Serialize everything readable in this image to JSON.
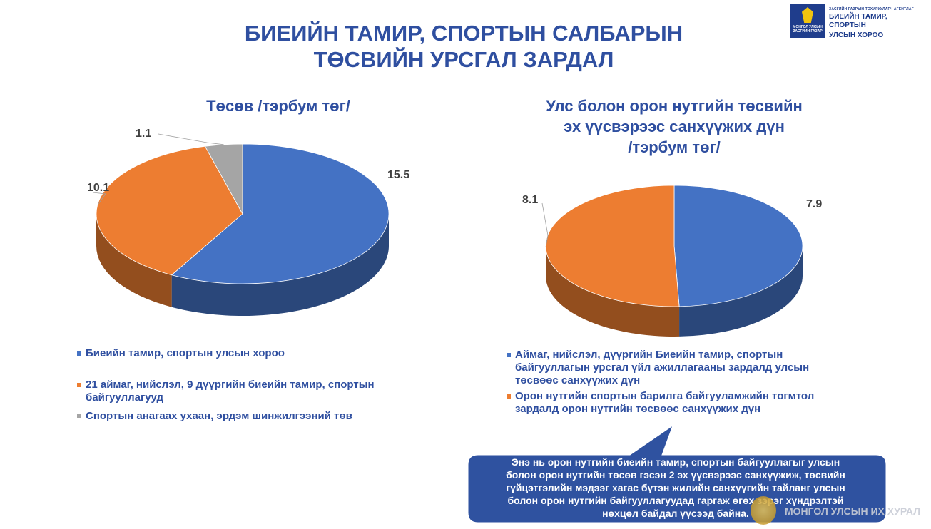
{
  "slide": {
    "title_line1": "БИЕИЙН ТАМИР, СПОРТЫН САЛБАРЫН",
    "title_line2": "ТӨСВИЙН УРСГАЛ ЗАРДАЛ"
  },
  "logo": {
    "box_text": "МОНГОЛ УЛСЫН ЗАСГИЙН ГАЗАР",
    "small": "ЗАСГИЙН ГАЗРЫН ТОХИРУУЛАГЧ АГЕНТЛАГ",
    "line1": "БИЕИЙН ТАМИР, СПОРТЫН",
    "line2": "УЛСЫН ХОРОО"
  },
  "chart_data": [
    {
      "type": "pie",
      "title": "Төсөв /тэрбум төг/",
      "categories": [
        "Биеийн тамир, спортын улсын хороо",
        "21 аймаг, нийслэл, 9 дүүргийн биеийн тамир, спортын байгууллагууд",
        "Спортын анагаах ухаан, эрдэм шинжилгээний төв"
      ],
      "values": [
        15.5,
        10.1,
        1.1
      ],
      "labels": [
        "15.5",
        "10.1",
        "1.1"
      ],
      "colors": [
        "#4472c4",
        "#ed7d31",
        "#a5a5a5"
      ],
      "legend_position": "bottom"
    },
    {
      "type": "pie",
      "title_lines": [
        "Улс  болон орон нутгийн төсвийн",
        "эх үүсвэрээс санхүүжих дүн",
        "/тэрбум төг/"
      ],
      "categories": [
        "Аймаг, нийслэл, дүүргийн Биеийн тамир, спортын байгууллагын урсгал үйл ажиллагааны зардалд улсын төсвөөс санхүүжих дүн",
        "Орон нутгийн спортын барилга байгууламжийн тогмтол зардалд орон нутгийн төсвөөс санхүүжих дүн"
      ],
      "values": [
        7.9,
        8.1
      ],
      "labels": [
        "7.9",
        "8.1"
      ],
      "colors": [
        "#4472c4",
        "#ed7d31"
      ],
      "legend_position": "bottom"
    }
  ],
  "legend1": [
    {
      "line1": "Биеийн тамир, спортын улсын хороо",
      "line2": ""
    },
    {
      "line1": "21 аймаг, нийслэл, 9 дүүргийн биеийн тамир, спортын",
      "line2": "байгууллагууд"
    },
    {
      "line1": "Спортын анагаах ухаан, эрдэм шинжилгээний төв",
      "line2": ""
    }
  ],
  "legend2": [
    {
      "line1": "Аймаг, нийслэл, дүүргийн Биеийн тамир, спортын",
      "line2": "байгууллагын урсгал үйл ажиллагааны зардалд улсын",
      "line3": "төсвөөс санхүүжих дүн"
    },
    {
      "line1": "Орон нутгийн спортын барилга байгууламжийн тогмтол",
      "line2": "зардалд орон нутгийн төсвөөс санхүүжих дүн",
      "line3": ""
    }
  ],
  "callout": {
    "lines": [
      "Энэ нь орон нутгийн биеийн тамир, спортын байгууллагыг улсын",
      "болон орон нутгийн төсөв гэсэн 2 эх үүсвэрээс санхүүжиж, төсвийн",
      "гүйцэтгэлийн мэдээг хагас бүтэн жилийн санхүүгийн тайланг улсын",
      "болон орон нутгийн байгууллагуудад гаргаж өгөх зэрэг хүндрэлтэй",
      "нөхцөл байдал үүсээд байна."
    ],
    "color": "#2f52a0"
  },
  "footer": {
    "text": "МОНГОЛ УЛСЫН ИХ ХУРАЛ"
  }
}
